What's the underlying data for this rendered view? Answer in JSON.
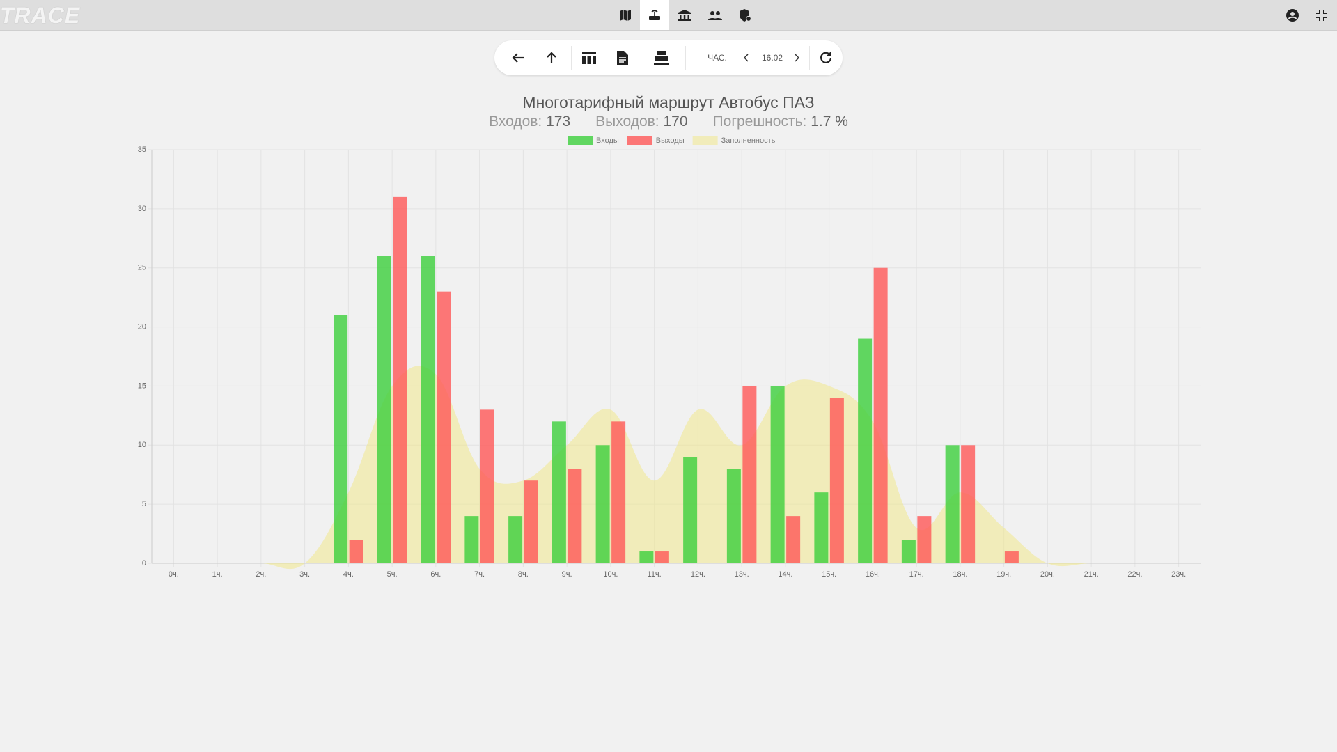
{
  "logo": "TRACE",
  "toolbar": {
    "mode": "ЧАС.",
    "date": "16.02"
  },
  "chart_data": {
    "type": "bar",
    "title": "Многотарифный маршрут Автобус ПАЗ",
    "stats": [
      {
        "label": "Входов:",
        "value": 173
      },
      {
        "label": "Выходов:",
        "value": 170
      },
      {
        "label": "Погрешность:",
        "value": 1.7,
        "unit": "%"
      }
    ],
    "categories": [
      "0ч.",
      "1ч.",
      "2ч.",
      "3ч.",
      "4ч.",
      "5ч.",
      "6ч.",
      "7ч.",
      "8ч.",
      "9ч.",
      "10ч.",
      "11ч.",
      "12ч.",
      "13ч.",
      "14ч.",
      "15ч.",
      "16ч.",
      "17ч.",
      "18ч.",
      "19ч.",
      "20ч.",
      "21ч.",
      "22ч.",
      "23ч."
    ],
    "series": [
      {
        "name": "Входы",
        "type": "bar",
        "color": "rgba(60,208,60,0.8)",
        "values": [
          0,
          0,
          0,
          0,
          21,
          26,
          26,
          4,
          4,
          12,
          10,
          1,
          9,
          8,
          15,
          6,
          19,
          2,
          10,
          0,
          0,
          0,
          0,
          0
        ]
      },
      {
        "name": "Выходы",
        "type": "bar",
        "color": "rgba(255,88,88,0.8)",
        "values": [
          0,
          0,
          0,
          0,
          2,
          31,
          23,
          13,
          7,
          8,
          12,
          1,
          0,
          15,
          4,
          14,
          25,
          4,
          10,
          1,
          0,
          0,
          0,
          0
        ]
      },
      {
        "name": "Заполненность",
        "type": "area",
        "color": "rgba(240,232,140,0.55)",
        "values": [
          0,
          0,
          0,
          0,
          6,
          15,
          16,
          8,
          7,
          10,
          13,
          7,
          13,
          10,
          15,
          15,
          12,
          3,
          6,
          3,
          0,
          0,
          0,
          0
        ]
      }
    ],
    "ylim": [
      0,
      35
    ],
    "yticks": [
      0,
      5,
      10,
      15,
      20,
      25,
      30,
      35
    ],
    "grid": true,
    "legend": "top"
  }
}
